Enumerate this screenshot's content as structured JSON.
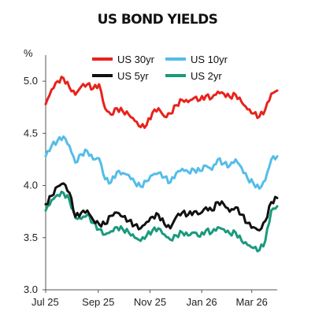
{
  "title": "US BOND YIELDS",
  "unit": "%",
  "colors": {
    "us30": "#e8221c",
    "us10": "#54bde8",
    "us5": "#111111",
    "us2": "#1a9a7d",
    "axis": "#555555"
  },
  "chart_data": {
    "type": "line",
    "title": "US BOND YIELDS",
    "ylabel": "%",
    "xlabel": "",
    "ylim": [
      3.0,
      5.25
    ],
    "yticks": [
      "3.0",
      "3.5",
      "4.0",
      "4.5",
      "5.0"
    ],
    "xlim": [
      "2025-07-01",
      "2026-03-31"
    ],
    "xticks": [
      "Jul 25",
      "Sep 25",
      "Nov 25",
      "Jan 26",
      "Mar 26"
    ],
    "legend_position": "top",
    "series": [
      {
        "name": "US 30yr",
        "color_key": "us30",
        "x": [
          "2025-07-01",
          "2025-07-08",
          "2025-07-15",
          "2025-07-22",
          "2025-07-29",
          "2025-08-05",
          "2025-08-12",
          "2025-08-19",
          "2025-08-26",
          "2025-09-02",
          "2025-09-09",
          "2025-09-16",
          "2025-09-23",
          "2025-09-30",
          "2025-10-07",
          "2025-10-14",
          "2025-10-21",
          "2025-10-28",
          "2025-11-04",
          "2025-11-11",
          "2025-11-18",
          "2025-11-25",
          "2025-12-02",
          "2025-12-09",
          "2025-12-16",
          "2025-12-23",
          "2025-12-30",
          "2026-01-06",
          "2026-01-13",
          "2026-01-20",
          "2026-01-27",
          "2026-02-03",
          "2026-02-10",
          "2026-02-17",
          "2026-02-24",
          "2026-03-03",
          "2026-03-10",
          "2026-03-17",
          "2026-03-24",
          "2026-03-31"
        ],
        "values": [
          4.78,
          4.92,
          5.0,
          5.03,
          4.94,
          4.87,
          4.95,
          4.97,
          4.93,
          4.97,
          4.74,
          4.68,
          4.74,
          4.71,
          4.68,
          4.62,
          4.56,
          4.58,
          4.7,
          4.74,
          4.66,
          4.69,
          4.77,
          4.82,
          4.8,
          4.84,
          4.82,
          4.86,
          4.84,
          4.9,
          4.88,
          4.85,
          4.87,
          4.8,
          4.73,
          4.69,
          4.66,
          4.73,
          4.88,
          4.91
        ]
      },
      {
        "name": "US 10yr",
        "color_key": "us10",
        "x": [
          "2025-07-01",
          "2025-07-08",
          "2025-07-15",
          "2025-07-22",
          "2025-07-29",
          "2025-08-05",
          "2025-08-12",
          "2025-08-19",
          "2025-08-26",
          "2025-09-02",
          "2025-09-09",
          "2025-09-16",
          "2025-09-23",
          "2025-09-30",
          "2025-10-07",
          "2025-10-14",
          "2025-10-21",
          "2025-10-28",
          "2025-11-04",
          "2025-11-11",
          "2025-11-18",
          "2025-11-25",
          "2025-12-02",
          "2025-12-09",
          "2025-12-16",
          "2025-12-23",
          "2025-12-30",
          "2026-01-06",
          "2026-01-13",
          "2026-01-20",
          "2026-01-27",
          "2026-02-03",
          "2026-02-10",
          "2026-02-17",
          "2026-02-24",
          "2026-03-03",
          "2026-03-10",
          "2026-03-17",
          "2026-03-24",
          "2026-03-31"
        ],
        "values": [
          4.28,
          4.38,
          4.43,
          4.47,
          4.38,
          4.22,
          4.3,
          4.33,
          4.25,
          4.26,
          4.06,
          4.03,
          4.13,
          4.12,
          4.1,
          4.03,
          3.99,
          4.04,
          4.1,
          4.12,
          4.08,
          4.03,
          4.12,
          4.16,
          4.13,
          4.15,
          4.14,
          4.19,
          4.15,
          4.25,
          4.21,
          4.19,
          4.25,
          4.17,
          4.07,
          4.02,
          3.97,
          4.05,
          4.25,
          4.28
        ]
      },
      {
        "name": "US 5yr",
        "color_key": "us5",
        "x": [
          "2025-07-01",
          "2025-07-08",
          "2025-07-15",
          "2025-07-22",
          "2025-07-29",
          "2025-08-05",
          "2025-08-12",
          "2025-08-19",
          "2025-08-26",
          "2025-09-02",
          "2025-09-09",
          "2025-09-16",
          "2025-09-23",
          "2025-09-30",
          "2025-10-07",
          "2025-10-14",
          "2025-10-21",
          "2025-10-28",
          "2025-11-04",
          "2025-11-11",
          "2025-11-18",
          "2025-11-25",
          "2025-12-02",
          "2025-12-09",
          "2025-12-16",
          "2025-12-23",
          "2025-12-30",
          "2026-01-06",
          "2026-01-13",
          "2026-01-20",
          "2026-01-27",
          "2026-02-03",
          "2026-02-10",
          "2026-02-17",
          "2026-02-24",
          "2026-03-03",
          "2026-03-10",
          "2026-03-17",
          "2026-03-24",
          "2026-03-31"
        ],
        "values": [
          3.82,
          3.9,
          3.99,
          4.02,
          3.93,
          3.7,
          3.74,
          3.76,
          3.67,
          3.63,
          3.63,
          3.71,
          3.74,
          3.7,
          3.66,
          3.62,
          3.59,
          3.65,
          3.7,
          3.72,
          3.63,
          3.59,
          3.7,
          3.74,
          3.72,
          3.75,
          3.73,
          3.79,
          3.76,
          3.84,
          3.82,
          3.75,
          3.79,
          3.72,
          3.64,
          3.6,
          3.57,
          3.66,
          3.84,
          3.88
        ]
      },
      {
        "name": "US 2yr",
        "color_key": "us2",
        "x": [
          "2025-07-01",
          "2025-07-08",
          "2025-07-15",
          "2025-07-22",
          "2025-07-29",
          "2025-08-05",
          "2025-08-12",
          "2025-08-19",
          "2025-08-26",
          "2025-09-02",
          "2025-09-09",
          "2025-09-16",
          "2025-09-23",
          "2025-09-30",
          "2025-10-07",
          "2025-10-14",
          "2025-10-21",
          "2025-10-28",
          "2025-11-04",
          "2025-11-11",
          "2025-11-18",
          "2025-11-25",
          "2025-12-02",
          "2025-12-09",
          "2025-12-16",
          "2025-12-23",
          "2025-12-30",
          "2026-01-06",
          "2026-01-13",
          "2026-01-20",
          "2026-01-27",
          "2026-02-03",
          "2026-02-10",
          "2026-02-17",
          "2026-02-24",
          "2026-03-03",
          "2026-03-10",
          "2026-03-17",
          "2026-03-24",
          "2026-03-31"
        ],
        "values": [
          3.76,
          3.86,
          3.91,
          3.93,
          3.86,
          3.69,
          3.68,
          3.72,
          3.64,
          3.58,
          3.53,
          3.56,
          3.6,
          3.58,
          3.55,
          3.5,
          3.47,
          3.52,
          3.57,
          3.59,
          3.53,
          3.48,
          3.52,
          3.55,
          3.52,
          3.55,
          3.51,
          3.57,
          3.55,
          3.6,
          3.58,
          3.54,
          3.55,
          3.47,
          3.43,
          3.4,
          3.38,
          3.47,
          3.76,
          3.8
        ]
      }
    ]
  }
}
